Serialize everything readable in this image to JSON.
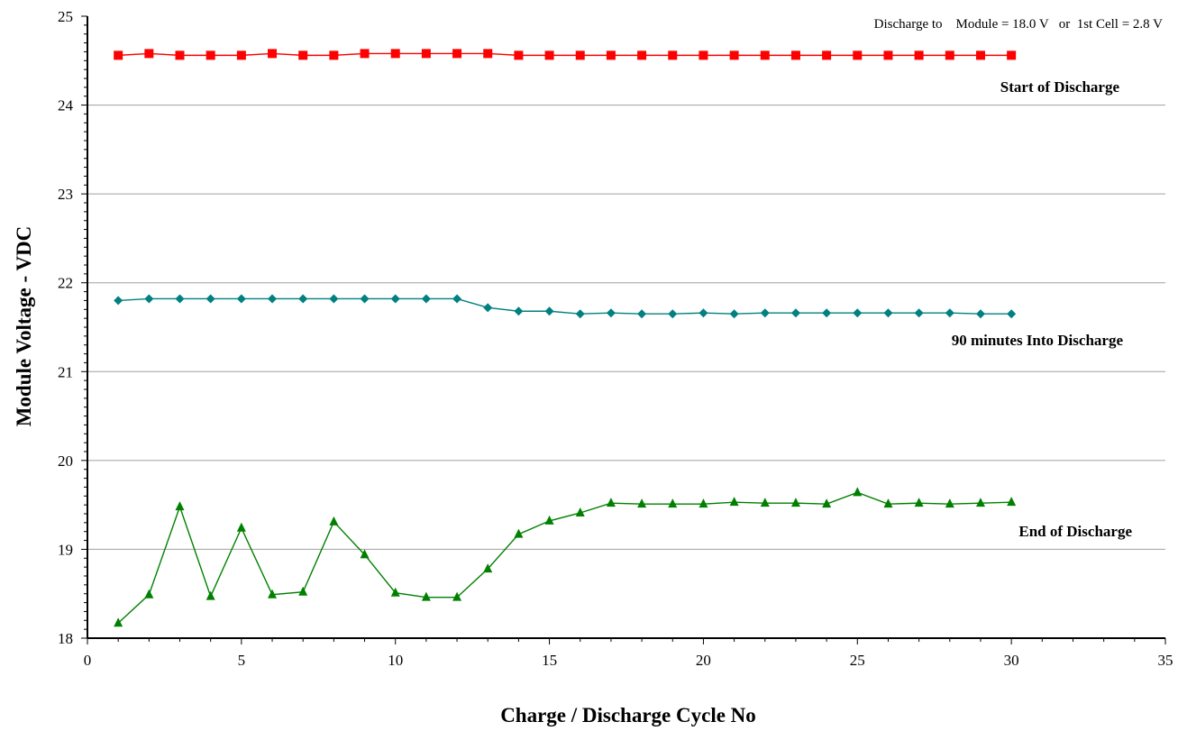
{
  "chart_data": {
    "type": "line",
    "subtitle": "Discharge to    Module = 18.0 V   or  1st Cell = 2.8 V",
    "xlabel": "Charge / Discharge Cycle No",
    "ylabel": "Module Voltage - VDC",
    "xlim": [
      0,
      35
    ],
    "ylim": [
      18,
      25
    ],
    "x_ticks": [
      "0",
      "5",
      "10",
      "15",
      "20",
      "25",
      "30",
      "35"
    ],
    "y_ticks": [
      "18",
      "19",
      "20",
      "21",
      "22",
      "23",
      "24",
      "25"
    ],
    "grid": "horizontal",
    "x": [
      1,
      2,
      3,
      4,
      5,
      6,
      7,
      8,
      9,
      10,
      11,
      12,
      13,
      14,
      15,
      16,
      17,
      18,
      19,
      20,
      21,
      22,
      23,
      24,
      25,
      26,
      27,
      28,
      29,
      30
    ],
    "series": [
      {
        "label": "Start of Discharge",
        "color": "#ff0000",
        "marker": "square",
        "values": [
          24.56,
          24.58,
          24.56,
          24.56,
          24.56,
          24.58,
          24.56,
          24.56,
          24.58,
          24.58,
          24.58,
          24.58,
          24.58,
          24.56,
          24.56,
          24.56,
          24.56,
          24.56,
          24.56,
          24.56,
          24.56,
          24.56,
          24.56,
          24.56,
          24.56,
          24.56,
          24.56,
          24.56,
          24.56,
          24.56
        ]
      },
      {
        "label": "90 minutes Into Discharge",
        "color": "#008080",
        "marker": "diamond",
        "values": [
          21.8,
          21.82,
          21.82,
          21.82,
          21.82,
          21.82,
          21.82,
          21.82,
          21.82,
          21.82,
          21.82,
          21.82,
          21.72,
          21.68,
          21.68,
          21.65,
          21.66,
          21.65,
          21.65,
          21.66,
          21.65,
          21.66,
          21.66,
          21.66,
          21.66,
          21.66,
          21.66,
          21.66,
          21.65,
          21.65
        ]
      },
      {
        "label": "End of Discharge",
        "color": "#008000",
        "marker": "triangle",
        "values": [
          18.17,
          18.49,
          19.48,
          18.47,
          19.24,
          18.49,
          18.52,
          19.31,
          18.94,
          18.51,
          18.46,
          18.46,
          18.78,
          19.17,
          19.32,
          19.41,
          19.52,
          19.51,
          19.51,
          19.51,
          19.53,
          19.52,
          19.52,
          19.51,
          19.64,
          19.51,
          19.52,
          19.51,
          19.52,
          19.53
        ]
      }
    ]
  }
}
